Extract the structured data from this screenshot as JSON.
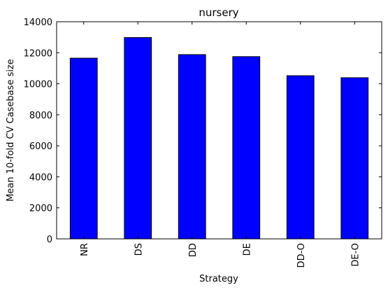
{
  "chart_data": {
    "type": "bar",
    "title": "nursery",
    "xlabel": "Strategy",
    "ylabel": "Mean 10-fold CV Casebase size",
    "categories": [
      "NR",
      "DS",
      "DD",
      "DE",
      "DD-O",
      "DE-O"
    ],
    "values": [
      11650,
      12980,
      11880,
      11750,
      10520,
      10390
    ],
    "ylim": [
      0,
      14000
    ],
    "yticks": [
      0,
      2000,
      4000,
      6000,
      8000,
      10000,
      12000,
      14000
    ],
    "grid": false,
    "legend": "none",
    "bar_color": "#0000ff",
    "edge_color": "#000000"
  }
}
